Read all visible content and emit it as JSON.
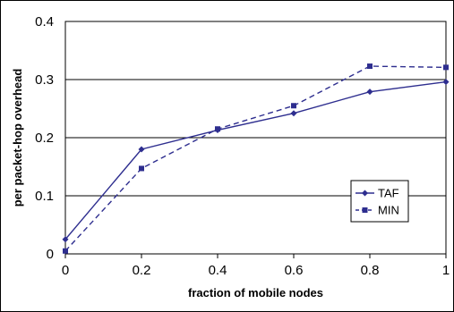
{
  "chart_data": {
    "type": "line",
    "title": "",
    "xlabel": "fraction of mobile nodes",
    "ylabel": "per packet-hop overhead",
    "xlim": [
      0,
      1
    ],
    "ylim": [
      0,
      0.4
    ],
    "x_ticks": [
      0,
      0.2,
      0.4,
      0.6,
      0.8,
      1
    ],
    "x_tick_labels": [
      "0",
      "0.2",
      "0.4",
      "0.6",
      "0.8",
      "1"
    ],
    "y_ticks": [
      0,
      0.1,
      0.2,
      0.3,
      0.4
    ],
    "y_tick_labels": [
      "0",
      "0.1",
      "0.2",
      "0.3",
      "0.4"
    ],
    "grid": "horizontal",
    "legend_position": "right",
    "x": [
      0,
      0.2,
      0.4,
      0.6,
      0.8,
      1
    ],
    "series": [
      {
        "name": "TAF",
        "values": [
          0.025,
          0.18,
          0.213,
          0.242,
          0.279,
          0.296
        ],
        "marker": "diamond",
        "line_style": "solid",
        "color": "#2E2E8F"
      },
      {
        "name": "MIN",
        "values": [
          0.005,
          0.147,
          0.215,
          0.255,
          0.323,
          0.321
        ],
        "marker": "square",
        "line_style": "dashed",
        "color": "#2E2E8F"
      }
    ]
  }
}
